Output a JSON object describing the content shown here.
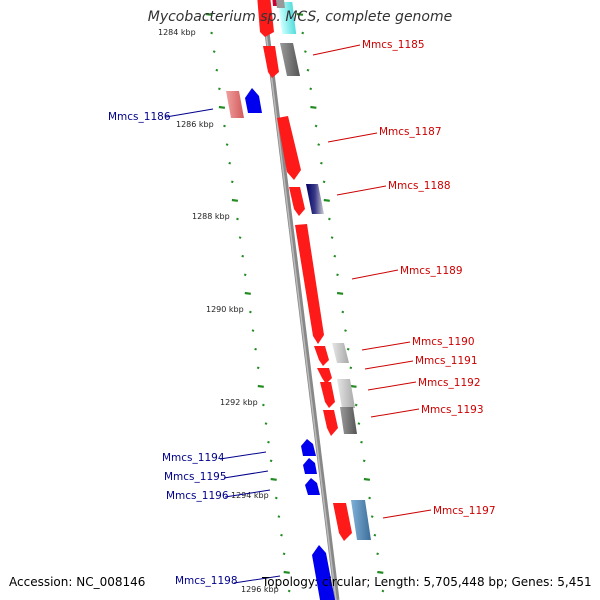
{
  "title": "Mycobacterium sp. MCS, complete genome",
  "footer": {
    "accession": "Accession: NC_008146",
    "summary": "Topology: circular; Length: 5,705,448 bp; Genes: 5,451"
  },
  "colors": {
    "forward_label": "#cc0000",
    "reverse_label": "#00008b",
    "tick": "#228b22",
    "backbone": "#888888"
  },
  "tick_labels": [
    "1284 kbp",
    "1286 kbp",
    "1288 kbp",
    "1290 kbp",
    "1292 kbp",
    "1294 kbp",
    "1296 kbp"
  ],
  "genes": [
    {
      "label": "Mmcs_1185",
      "strand": "forward"
    },
    {
      "label": "Mmcs_1186",
      "strand": "reverse"
    },
    {
      "label": "Mmcs_1187",
      "strand": "forward"
    },
    {
      "label": "Mmcs_1188",
      "strand": "forward"
    },
    {
      "label": "Mmcs_1189",
      "strand": "forward"
    },
    {
      "label": "Mmcs_1190",
      "strand": "forward"
    },
    {
      "label": "Mmcs_1191",
      "strand": "forward"
    },
    {
      "label": "Mmcs_1192",
      "strand": "forward"
    },
    {
      "label": "Mmcs_1193",
      "strand": "forward"
    },
    {
      "label": "Mmcs_1194",
      "strand": "reverse"
    },
    {
      "label": "Mmcs_1195",
      "strand": "reverse"
    },
    {
      "label": "Mmcs_1196",
      "strand": "reverse"
    },
    {
      "label": "Mmcs_1197",
      "strand": "forward"
    },
    {
      "label": "Mmcs_1198",
      "strand": "reverse"
    }
  ]
}
